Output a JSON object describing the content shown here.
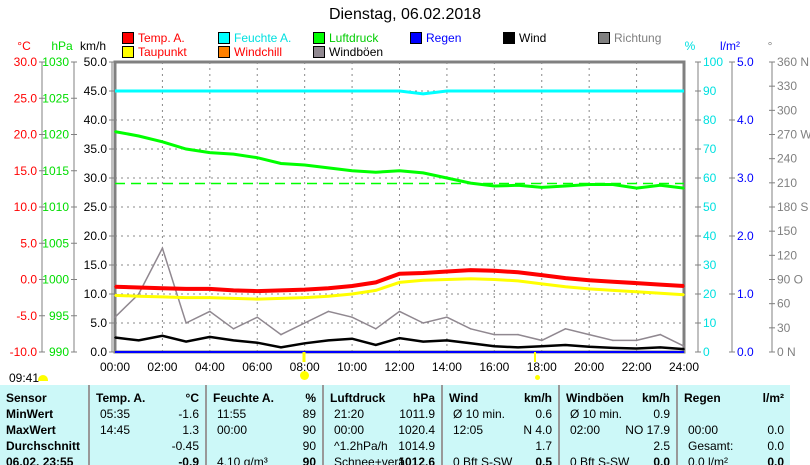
{
  "title": "Dienstag, 06.02.2018",
  "legend": [
    {
      "label": "Temp. A.",
      "color": "#ff0000",
      "text_color": "#ff0000"
    },
    {
      "label": "Feuchte A.",
      "color": "#00ffff",
      "text_color": "#00e0e0"
    },
    {
      "label": "Luftdruck",
      "color": "#00ff00",
      "text_color": "#00cc00"
    },
    {
      "label": "Regen",
      "color": "#0000ff",
      "text_color": "#0000ff"
    },
    {
      "label": "Wind",
      "color": "#000000",
      "text_color": "#000000"
    },
    {
      "label": "Richtung",
      "color": "#808080",
      "text_color": "#808080"
    },
    {
      "label": "Taupunkt",
      "color": "#ffff00",
      "text_color": "#ff0000"
    },
    {
      "label": "Windchill",
      "color": "#ff8000",
      "text_color": "#ff0000"
    },
    {
      "label": "Windböen",
      "color": "#908890",
      "text_color": "#000000"
    }
  ],
  "chart_data": {
    "type": "line",
    "title": "Dienstag, 06.02.2018",
    "x_ticks": [
      "00:00",
      "02:00",
      "04:00",
      "06:00",
      "08:00",
      "10:00",
      "12:00",
      "14:00",
      "16:00",
      "18:00",
      "20:00",
      "22:00",
      "24:00"
    ],
    "axes": {
      "temp": {
        "unit": "°C",
        "range": [
          -10,
          30
        ],
        "ticks": [
          "30.0",
          "25.0",
          "20.0",
          "15.0",
          "10.0",
          "5.0",
          "0.0",
          "-5.0",
          "-10.0"
        ]
      },
      "pressure": {
        "unit": "hPa",
        "range": [
          990,
          1030
        ],
        "ticks": [
          "1030",
          "1025",
          "1020",
          "1015",
          "1010",
          "1005",
          "1000",
          "995",
          "990"
        ]
      },
      "wind": {
        "unit": "km/h",
        "range": [
          0,
          50
        ],
        "ticks": [
          "50.0",
          "45.0",
          "40.0",
          "35.0",
          "30.0",
          "25.0",
          "20.0",
          "15.0",
          "10.0",
          "5.0",
          "0.0"
        ]
      },
      "humidity": {
        "unit": "%",
        "range": [
          0,
          100
        ],
        "ticks": [
          "100",
          "90",
          "80",
          "70",
          "60",
          "50",
          "40",
          "30",
          "20",
          "10",
          "0"
        ]
      },
      "rain": {
        "unit": "l/m²",
        "range": [
          0,
          5
        ],
        "ticks": [
          "5.0",
          "4.0",
          "3.0",
          "2.0",
          "1.0",
          "0.0"
        ]
      },
      "direction": {
        "unit": "°",
        "range": [
          0,
          360
        ],
        "ticks": [
          "360 N",
          "330",
          "300",
          "270 W",
          "240",
          "210",
          "180 S",
          "150",
          "120",
          "90  O",
          "60",
          "30",
          "0   N"
        ]
      }
    },
    "hours": [
      0,
      1,
      2,
      3,
      4,
      5,
      6,
      7,
      8,
      9,
      10,
      11,
      12,
      13,
      14,
      15,
      16,
      17,
      18,
      19,
      20,
      21,
      22,
      23,
      24
    ],
    "series": [
      {
        "name": "Temp. A.",
        "axis": "temp",
        "color": "#ff0000",
        "values": [
          -1.0,
          -1.1,
          -1.2,
          -1.3,
          -1.3,
          -1.5,
          -1.6,
          -1.5,
          -1.4,
          -1.2,
          -0.9,
          -0.4,
          0.8,
          0.9,
          1.1,
          1.3,
          1.2,
          1.0,
          0.6,
          0.2,
          -0.1,
          -0.3,
          -0.5,
          -0.7,
          -0.9
        ]
      },
      {
        "name": "Taupunkt",
        "axis": "temp",
        "color": "#ffff00",
        "values": [
          -2.2,
          -2.3,
          -2.4,
          -2.5,
          -2.5,
          -2.6,
          -2.7,
          -2.6,
          -2.5,
          -2.3,
          -2.0,
          -1.5,
          -0.4,
          -0.1,
          0.0,
          0.1,
          0.0,
          -0.2,
          -0.6,
          -1.0,
          -1.3,
          -1.5,
          -1.7,
          -1.9,
          -2.1
        ]
      },
      {
        "name": "Luftdruck",
        "axis": "pressure",
        "color": "#00ff00",
        "values": [
          1020.4,
          1019.8,
          1019.0,
          1018.0,
          1017.5,
          1017.3,
          1016.8,
          1016.0,
          1015.8,
          1015.4,
          1015.0,
          1014.8,
          1015.0,
          1014.7,
          1014.0,
          1013.3,
          1012.9,
          1013.0,
          1012.7,
          1012.9,
          1013.1,
          1013.1,
          1012.6,
          1013.0,
          1012.6
        ]
      },
      {
        "name": "Feuchte A.",
        "axis": "humidity",
        "color": "#00ffff",
        "values": [
          90,
          90,
          90,
          90,
          90,
          90,
          90,
          90,
          90,
          90,
          90,
          90,
          90,
          89,
          90,
          90,
          90,
          90,
          90,
          90,
          90,
          90,
          90,
          90,
          90
        ]
      },
      {
        "name": "Wind",
        "axis": "wind",
        "color": "#000000",
        "values": [
          2.5,
          2.0,
          2.8,
          1.8,
          2.6,
          2.0,
          1.6,
          0.8,
          1.5,
          2.0,
          2.3,
          1.2,
          2.4,
          1.8,
          2.0,
          1.5,
          1.0,
          0.8,
          1.0,
          1.2,
          0.9,
          0.7,
          0.6,
          0.8,
          0.5
        ]
      },
      {
        "name": "Windböen",
        "axis": "wind",
        "color": "#908890",
        "values": [
          6,
          10,
          17.9,
          5,
          7,
          4,
          6,
          3,
          5,
          7,
          6,
          4,
          7,
          5,
          6,
          4,
          3,
          3,
          2,
          4,
          3,
          2,
          2,
          3,
          1
        ]
      },
      {
        "name": "Regen",
        "axis": "rain",
        "color": "#0000ff",
        "values": [
          0,
          0,
          0,
          0,
          0,
          0,
          0,
          0,
          0,
          0,
          0,
          0,
          0,
          0,
          0,
          0,
          0,
          0,
          0,
          0,
          0,
          0,
          0,
          0,
          0
        ]
      }
    ],
    "reference_line": {
      "axis": "pressure",
      "value": 1013.25,
      "color": "#00ff00",
      "style": "dashed"
    }
  },
  "sun": {
    "current_time": "09:41"
  },
  "table": {
    "headers": [
      {
        "name": "Sensor",
        "unit": ""
      },
      {
        "name": "Temp. A.",
        "unit": "°C"
      },
      {
        "name": "Feuchte A.",
        "unit": "%"
      },
      {
        "name": "Luftdruck",
        "unit": "hPa"
      },
      {
        "name": "Wind",
        "unit": "km/h"
      },
      {
        "name": "Windböen",
        "unit": "km/h"
      },
      {
        "name": "Regen",
        "unit": "l/m²"
      }
    ],
    "rows": [
      {
        "label": "MinWert",
        "cells": [
          [
            "05:35",
            "-1.6"
          ],
          [
            "11:55",
            "89"
          ],
          [
            "21:20",
            "1011.9"
          ],
          [
            "Ø 10 min.",
            "0.6"
          ],
          [
            "Ø 10 min.",
            "0.9"
          ],
          [
            "",
            ""
          ]
        ]
      },
      {
        "label": "MaxWert",
        "cells": [
          [
            "14:45",
            "1.3"
          ],
          [
            "00:00",
            "90"
          ],
          [
            "00:00",
            "1020.4"
          ],
          [
            "12:05",
            "N 4.0"
          ],
          [
            "02:00",
            "NO 17.9"
          ],
          [
            "00:00",
            "0.0"
          ]
        ]
      },
      {
        "label": "Durchschnitt",
        "cells": [
          [
            "",
            "-0.45"
          ],
          [
            "",
            "90"
          ],
          [
            "^1.2hPa/h",
            "1014.9"
          ],
          [
            "",
            "1.7"
          ],
          [
            "",
            "2.5"
          ],
          [
            "Gesamt:",
            "0.0"
          ]
        ]
      },
      {
        "label": "06.02. 23:55",
        "cells": [
          [
            "",
            "-0.9"
          ],
          [
            "4.10 g/m³",
            "90"
          ],
          [
            "Schnee+verä",
            "1012.6"
          ],
          [
            "0 Bft S-SW",
            "0.5"
          ],
          [
            "0 Bft S-SW",
            "0.0"
          ],
          [
            "0.0 l/m²",
            "0.0"
          ]
        ]
      }
    ]
  }
}
